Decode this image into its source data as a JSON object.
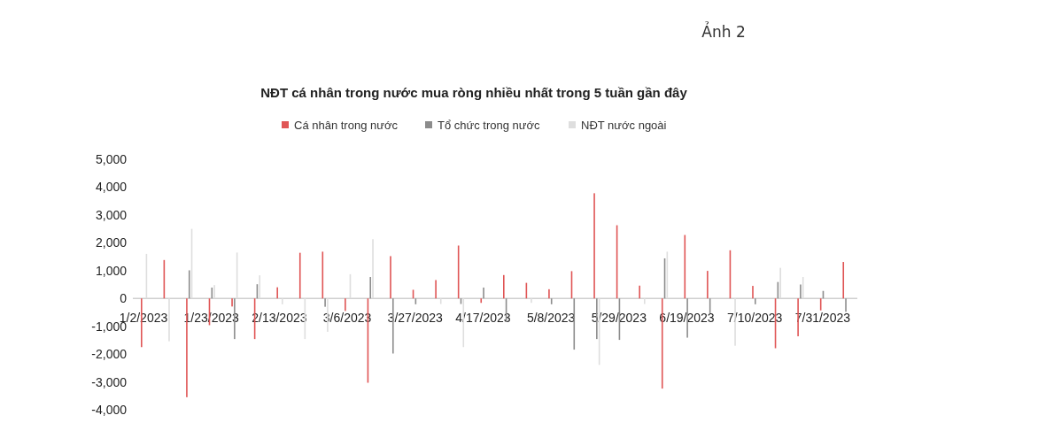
{
  "chart_data": {
    "type": "bar",
    "title": "NĐT cá nhân trong nước mua ròng nhiều nhất trong 5 tuần gần đây",
    "annotations": [
      "Ảnh 2"
    ],
    "categories": [
      "1/2/2023",
      null,
      null,
      "1/23/2023",
      null,
      null,
      "2/13/2023",
      null,
      null,
      "3/6/2023",
      null,
      null,
      "3/27/2023",
      null,
      null,
      "4/17/2023",
      null,
      null,
      "5/8/2023",
      null,
      null,
      "5/29/2023",
      null,
      null,
      "6/19/2023",
      null,
      null,
      "7/10/2023",
      null,
      null,
      "7/31/2023",
      null
    ],
    "series": [
      {
        "name": "Cá nhân trong nước",
        "color": "#e05555",
        "values": [
          -1750,
          1380,
          -3550,
          -960,
          -290,
          -1460,
          400,
          1640,
          1680,
          -450,
          -3030,
          1520,
          310,
          660,
          1900,
          -160,
          840,
          560,
          330,
          980,
          3780,
          2630,
          460,
          -3240,
          2280,
          990,
          1730,
          450,
          -1790,
          -1360,
          -430,
          1310
        ]
      },
      {
        "name": "Tổ chức trong nước",
        "color": "#8c8c8c",
        "values": [
          null,
          0,
          1010,
          390,
          -1460,
          510,
          0,
          0,
          -300,
          0,
          770,
          -1980,
          -210,
          0,
          -200,
          390,
          -850,
          0,
          -210,
          -1840,
          -1460,
          -1490,
          0,
          1440,
          -1410,
          -530,
          0,
          -210,
          590,
          500,
          270,
          -480
        ]
      },
      {
        "name": "NĐT nước ngoài",
        "color": "#dedede",
        "values": [
          1600,
          -1540,
          2500,
          480,
          1650,
          830,
          -210,
          -1460,
          -1200,
          870,
          2130,
          0,
          0,
          -200,
          -1750,
          0,
          0,
          -160,
          0,
          0,
          -2390,
          0,
          -200,
          1680,
          0,
          0,
          -1700,
          0,
          1100,
          770,
          0,
          0
        ]
      }
    ],
    "ylim": [
      -4000,
      5000
    ],
    "yticks": [
      {
        "value": -4000,
        "label": "-4,000"
      },
      {
        "value": -3000,
        "label": "-3,000"
      },
      {
        "value": -2000,
        "label": "-2,000"
      },
      {
        "value": -1000,
        "label": "-1,000"
      },
      0,
      {
        "value": 1000,
        "label": "1,000"
      },
      {
        "value": 2000,
        "label": "2,000"
      },
      {
        "value": 3000,
        "label": "3,000"
      },
      {
        "value": 4000,
        "label": "4,000"
      },
      {
        "value": 5000,
        "label": "5,000"
      }
    ],
    "legend": "top",
    "grid": false
  }
}
